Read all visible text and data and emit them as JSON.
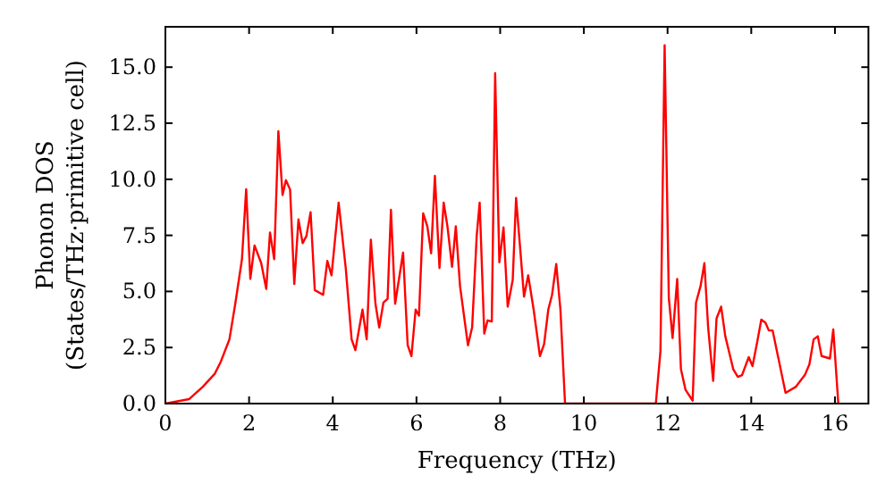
{
  "chart_data": {
    "type": "line",
    "xlabel": "Frequency (THz)",
    "ylabel": "Phonon DOS\n(States/THz·primitive cell)",
    "xlim": [
      0,
      16.8
    ],
    "ylim": [
      0,
      16.8
    ],
    "xticks": [
      {
        "value": 0,
        "label": "0"
      },
      {
        "value": 2,
        "label": "2"
      },
      {
        "value": 4,
        "label": "4"
      },
      {
        "value": 6,
        "label": "6"
      },
      {
        "value": 8,
        "label": "8"
      },
      {
        "value": 10,
        "label": "10"
      },
      {
        "value": 12,
        "label": "12"
      },
      {
        "value": 14,
        "label": "14"
      },
      {
        "value": 16,
        "label": "16"
      }
    ],
    "yticks": [
      {
        "value": 0,
        "label": "0.0"
      },
      {
        "value": 2.5,
        "label": "2.5"
      },
      {
        "value": 5,
        "label": "5.0"
      },
      {
        "value": 7.5,
        "label": "7.5"
      },
      {
        "value": 10,
        "label": "10.0"
      },
      {
        "value": 12.5,
        "label": "12.5"
      },
      {
        "value": 15,
        "label": "15.0"
      }
    ],
    "grid": false,
    "marker": "none",
    "line_style": "solid",
    "series": [
      {
        "color": "#ff0000",
        "x": [
          0,
          0.57,
          0.89,
          1.18,
          1.32,
          1.53,
          1.67,
          1.83,
          1.93,
          2.03,
          2.13,
          2.29,
          2.41,
          2.5,
          2.6,
          2.7,
          2.8,
          2.88,
          2.98,
          3.08,
          3.18,
          3.28,
          3.37,
          3.47,
          3.57,
          3.77,
          3.87,
          3.97,
          4.14,
          4.31,
          4.45,
          4.54,
          4.71,
          4.81,
          4.91,
          5.02,
          5.11,
          5.21,
          5.31,
          5.39,
          5.49,
          5.68,
          5.79,
          5.88,
          5.98,
          6.06,
          6.16,
          6.26,
          6.35,
          6.44,
          6.55,
          6.65,
          6.74,
          6.85,
          6.94,
          7.04,
          7.23,
          7.33,
          7.44,
          7.51,
          7.62,
          7.7,
          7.8,
          7.88,
          7.98,
          8.08,
          8.18,
          8.3,
          8.38,
          8.47,
          8.57,
          8.67,
          8.8,
          8.95,
          9.05,
          9.15,
          9.24,
          9.34,
          9.44,
          9.55,
          11.72,
          11.83,
          11.93,
          12.03,
          12.12,
          12.23,
          12.32,
          12.43,
          12.6,
          12.68,
          12.79,
          12.88,
          12.97,
          13.09,
          13.17,
          13.28,
          13.38,
          13.57,
          13.68,
          13.78,
          13.94,
          14.03,
          14.14,
          14.24,
          14.34,
          14.42,
          14.51,
          14.82,
          15.06,
          15.28,
          15.39,
          15.49,
          15.59,
          15.68,
          15.88,
          15.96,
          16.08
        ],
        "values": [
          0,
          0.2,
          0.74,
          1.33,
          1.85,
          2.86,
          4.45,
          6.44,
          9.56,
          5.56,
          7.05,
          6.26,
          5.11,
          7.63,
          6.44,
          12.14,
          9.3,
          9.96,
          9.54,
          5.33,
          8.21,
          7.15,
          7.47,
          8.53,
          5.06,
          4.85,
          6.36,
          5.72,
          8.96,
          6.04,
          2.86,
          2.38,
          4.19,
          2.86,
          7.31,
          4.45,
          3.39,
          4.5,
          4.67,
          8.64,
          4.45,
          6.73,
          2.6,
          2.12,
          4.19,
          3.92,
          8.48,
          7.9,
          6.7,
          10.15,
          6.04,
          8.96,
          7.9,
          6.1,
          7.9,
          5.25,
          2.6,
          3.39,
          7.5,
          8.96,
          3.12,
          3.71,
          3.66,
          14.73,
          6.3,
          7.85,
          4.32,
          5.51,
          9.17,
          7.1,
          4.77,
          5.72,
          4.19,
          2.12,
          2.65,
          4.19,
          4.85,
          6.22,
          4.19,
          0,
          0,
          2.33,
          15.98,
          4.71,
          2.92,
          5.56,
          1.53,
          0.61,
          0.13,
          4.5,
          5.25,
          6.26,
          3.39,
          1.01,
          3.79,
          4.32,
          3.0,
          1.53,
          1.19,
          1.27,
          2.07,
          1.67,
          2.73,
          3.74,
          3.6,
          3.26,
          3.26,
          0.48,
          0.74,
          1.27,
          1.75,
          2.86,
          3.0,
          2.12,
          2.01,
          3.31,
          0
        ]
      }
    ]
  }
}
